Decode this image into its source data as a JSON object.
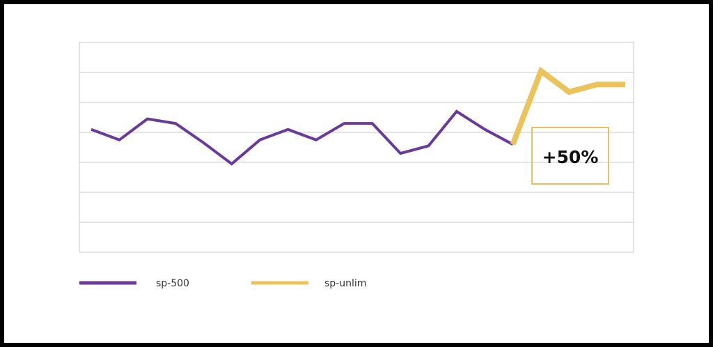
{
  "chart_data": {
    "type": "line",
    "x": [
      1,
      2,
      3,
      4,
      5,
      6,
      7,
      8,
      9,
      10,
      11,
      12,
      13,
      14,
      15,
      16,
      17,
      18,
      19,
      20
    ],
    "ylim": [
      0,
      7
    ],
    "grid": true,
    "legend_position": "bottom-left",
    "series": [
      {
        "name": "sp-500",
        "color": "#6a3a9a",
        "x": [
          1,
          2,
          3,
          4,
          5,
          6,
          7,
          8,
          9,
          10,
          11,
          12,
          13,
          14,
          15,
          16
        ],
        "values": [
          4.1,
          3.75,
          4.45,
          4.3,
          3.65,
          2.95,
          3.75,
          4.1,
          3.75,
          4.3,
          4.3,
          3.3,
          3.55,
          4.7,
          4.1,
          3.6
        ]
      },
      {
        "name": "sp-unlim",
        "color": "#ecc35a",
        "x": [
          16,
          17,
          18,
          19,
          20
        ],
        "values": [
          3.6,
          6.05,
          5.35,
          5.6,
          5.6
        ]
      }
    ],
    "annotations": [
      {
        "text": "+50%",
        "border_color": "#e8c35a"
      }
    ]
  }
}
